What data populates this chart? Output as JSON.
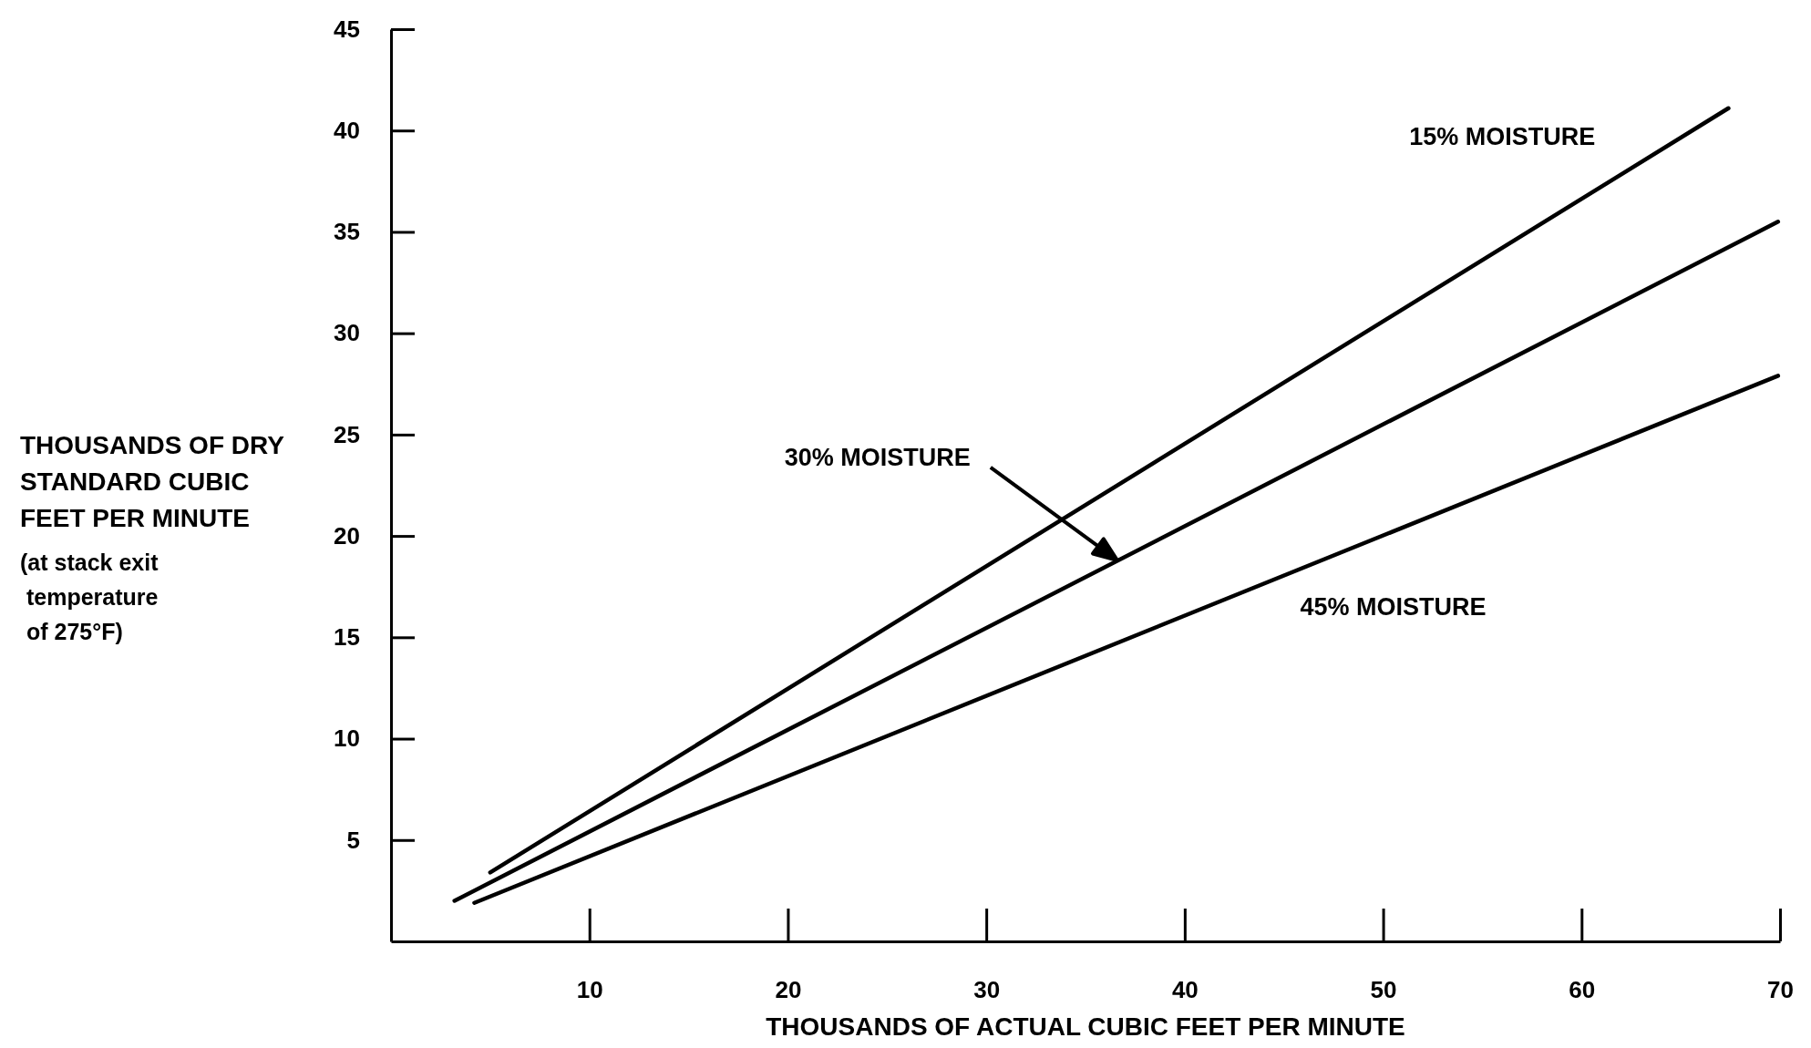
{
  "chart_data": {
    "type": "line",
    "xlabel": "THOUSANDS OF ACTUAL CUBIC FEET PER MINUTE",
    "ylabel": "THOUSANDS OF DRY\nSTANDARD CUBIC\nFEET PER MINUTE",
    "annotations": [
      "(at stack exit\n temperature\n of 275°F)",
      "30% MOISTURE"
    ],
    "xlim": [
      0,
      70
    ],
    "xticks": [
      10,
      20,
      30,
      40,
      50,
      60,
      70
    ],
    "ylim": [
      0,
      45
    ],
    "yticks": [
      5,
      10,
      15,
      20,
      25,
      30,
      35,
      40,
      45
    ],
    "grid": false,
    "legend": false,
    "marker": "none",
    "line_style": "solid",
    "series": [
      {
        "name": "15% MOISTURE",
        "color": "#000000",
        "x": [
          5.0,
          67.4
        ],
        "values": [
          3.4,
          41.1
        ]
      },
      {
        "color": "#000000",
        "x": [
          3.2,
          69.9
        ],
        "values": [
          2.0,
          35.5
        ]
      },
      {
        "name": "45% MOISTURE",
        "color": "#000000",
        "x": [
          4.2,
          69.9
        ],
        "values": [
          1.9,
          27.9
        ]
      }
    ]
  }
}
